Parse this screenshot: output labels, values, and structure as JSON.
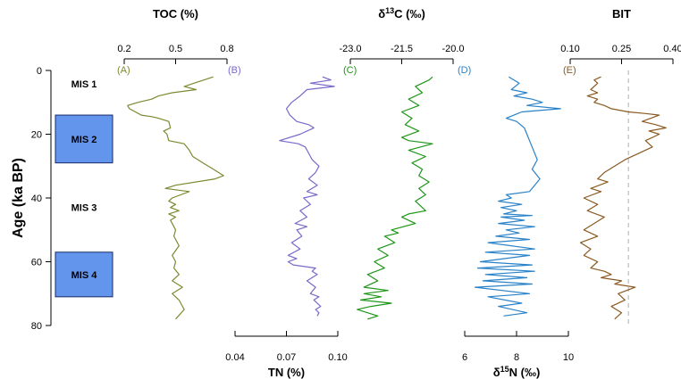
{
  "chart_data": {
    "type": "line",
    "y_axis": {
      "label": "Age (ka BP)",
      "range": [
        0,
        80
      ],
      "ticks": [
        "0",
        "20",
        "40",
        "60",
        "80"
      ],
      "inverted": true
    },
    "mis": [
      {
        "label": "MIS 1",
        "from": 0,
        "to": 14,
        "shaded": false
      },
      {
        "label": "MIS 2",
        "from": 14,
        "to": 29,
        "shaded": true
      },
      {
        "label": "MIS 3",
        "from": 29,
        "to": 57,
        "shaded": false
      },
      {
        "label": "MIS 4",
        "from": 57,
        "to": 71,
        "shaded": true
      }
    ],
    "colors": {
      "mis_fill": "#6495ED",
      "toc": "#7a8a30",
      "tn": "#7a68c8",
      "d13c": "#1e9618",
      "d15n": "#2a82c8",
      "bit": "#8a5a22",
      "ref_line": "#bbbbbb"
    },
    "panels": [
      {
        "id": "A",
        "label": "(A)",
        "title": "TOC (%)",
        "axis_pos": "top",
        "range": [
          0.2,
          0.8
        ],
        "ticks": [
          "0.2",
          "0.5",
          "0.8"
        ],
        "x": [
          0.72,
          0.55,
          0.62,
          0.48,
          0.4,
          0.36,
          0.28,
          0.22,
          0.23,
          0.3,
          0.36,
          0.4,
          0.46,
          0.47,
          0.43,
          0.45,
          0.46,
          0.55,
          0.58,
          0.6,
          0.66,
          0.72,
          0.78,
          0.73,
          0.5,
          0.44,
          0.58,
          0.48,
          0.46,
          0.5,
          0.47,
          0.52,
          0.46,
          0.5,
          0.47,
          0.48,
          0.5,
          0.49,
          0.52,
          0.48,
          0.5,
          0.49,
          0.52,
          0.48,
          0.54,
          0.48,
          0.52,
          0.55,
          0.5
        ],
        "y": [
          2,
          5,
          6,
          7,
          8,
          9,
          10,
          11,
          12,
          14,
          14.5,
          15,
          16,
          18,
          19,
          20,
          22,
          23,
          25,
          27,
          29,
          31,
          33,
          34,
          36,
          37,
          38,
          40,
          41,
          42,
          43,
          44,
          45,
          46,
          47,
          48,
          50,
          52,
          55,
          58,
          60,
          62,
          64,
          66,
          68,
          70,
          72,
          75,
          78
        ]
      },
      {
        "id": "B",
        "label": "(B)",
        "title": "TN (%)",
        "axis_pos": "bottom",
        "range": [
          0.04,
          0.1
        ],
        "ticks": [
          "0.04",
          "0.07",
          "0.10"
        ],
        "x": [
          0.091,
          0.096,
          0.084,
          0.098,
          0.082,
          0.078,
          0.073,
          0.07,
          0.072,
          0.076,
          0.083,
          0.086,
          0.078,
          0.066,
          0.077,
          0.081,
          0.083,
          0.085,
          0.089,
          0.087,
          0.083,
          0.088,
          0.082,
          0.088,
          0.08,
          0.084,
          0.078,
          0.082,
          0.075,
          0.082,
          0.076,
          0.079,
          0.073,
          0.078,
          0.071,
          0.076,
          0.071,
          0.074,
          0.087,
          0.085,
          0.088,
          0.082,
          0.087,
          0.084,
          0.089,
          0.086,
          0.09,
          0.087,
          0.089,
          0.088
        ],
        "y": [
          2,
          3,
          4,
          5,
          6,
          8,
          10,
          12,
          14,
          16,
          17,
          18,
          20,
          22,
          23,
          24,
          26,
          28,
          30,
          32,
          34,
          36,
          38,
          39,
          40,
          42,
          44,
          46,
          48,
          49,
          50,
          52,
          54,
          56,
          58,
          59,
          60,
          61,
          62,
          63,
          64,
          66,
          68,
          70,
          71,
          72,
          74,
          75,
          76,
          77
        ]
      },
      {
        "id": "C",
        "label": "(C)",
        "title": "δ13C (‰)",
        "axis_pos": "top",
        "range": [
          -23.0,
          -20.0
        ],
        "ticks": [
          "-23.0",
          "-21.5",
          "-20.0"
        ],
        "x": [
          -20.6,
          -20.7,
          -21.1,
          -20.9,
          -21.3,
          -21.0,
          -21.5,
          -21.2,
          -21.4,
          -21.0,
          -21.5,
          -21.3,
          -20.6,
          -21.3,
          -20.8,
          -21.2,
          -20.9,
          -21.0,
          -20.7,
          -21.0,
          -20.8,
          -21.1,
          -20.9,
          -20.8,
          -21.3,
          -21.5,
          -21.1,
          -21.8,
          -21.6,
          -22.0,
          -21.7,
          -22.2,
          -21.9,
          -22.3,
          -22.0,
          -22.5,
          -22.2,
          -22.6,
          -21.9,
          -22.6,
          -22.1,
          -22.7,
          -21.8,
          -22.4,
          -22.8,
          -22.2,
          -22.5
        ],
        "y": [
          2,
          3,
          5,
          7,
          9,
          11,
          13,
          15,
          17,
          19,
          21,
          22,
          23,
          25,
          27,
          29,
          31,
          33,
          35,
          37,
          39,
          41,
          43,
          44,
          45,
          46,
          48,
          50,
          51,
          52,
          54,
          56,
          58,
          60,
          62,
          64,
          66,
          68,
          69,
          70,
          71,
          72,
          73,
          74,
          75,
          77,
          78
        ]
      },
      {
        "id": "D",
        "label": "(D)",
        "title": "δ15N (‰)",
        "axis_pos": "bottom",
        "range": [
          6,
          10
        ],
        "ticks": [
          "6",
          "8",
          "10"
        ],
        "x": [
          7.7,
          8.1,
          7.8,
          8.4,
          7.9,
          8.6,
          9.0,
          8.4,
          9.7,
          8.2,
          7.6,
          8.0,
          8.3,
          8.4,
          8.5,
          8.6,
          8.8,
          8.6,
          8.9,
          8.7,
          8.5,
          7.6,
          7.8,
          7.3,
          8.2,
          7.4,
          8.0,
          7.5,
          8.6,
          7.4,
          8.3,
          7.3,
          8.7,
          7.6,
          8.1,
          7.2,
          8.5,
          6.9,
          8.7,
          6.8,
          8.5,
          6.6,
          8.6,
          6.5,
          8.7,
          6.8,
          8.4,
          6.7,
          8.6,
          6.4,
          8.5,
          6.9,
          8.2,
          7.3,
          8.4,
          7.5
        ],
        "y": [
          2,
          4,
          6,
          7,
          8,
          9,
          10,
          11,
          12,
          13,
          15,
          16,
          18,
          20,
          22,
          24,
          28,
          31,
          34,
          36,
          38,
          39,
          40,
          41,
          42,
          43,
          44,
          45,
          45.5,
          46,
          47,
          48,
          49,
          50,
          51,
          52,
          53,
          54,
          56,
          57,
          58,
          60,
          61,
          62,
          63,
          64,
          65,
          66,
          67,
          68,
          70,
          71,
          73,
          74,
          76,
          77
        ]
      },
      {
        "id": "E",
        "label": "(E)",
        "title": "BIT",
        "axis_pos": "top",
        "range": [
          0.1,
          0.4
        ],
        "ticks": [
          "0.10",
          "0.25",
          "0.40"
        ],
        "x": [
          0.19,
          0.17,
          0.18,
          0.16,
          0.18,
          0.15,
          0.18,
          0.17,
          0.2,
          0.22,
          0.27,
          0.32,
          0.36,
          0.31,
          0.35,
          0.38,
          0.33,
          0.36,
          0.32,
          0.34,
          0.3,
          0.26,
          0.23,
          0.2,
          0.18,
          0.21,
          0.16,
          0.19,
          0.14,
          0.18,
          0.15,
          0.2,
          0.17,
          0.14,
          0.18,
          0.13,
          0.16,
          0.14,
          0.18,
          0.16,
          0.2,
          0.22,
          0.19,
          0.25,
          0.23,
          0.29,
          0.24,
          0.26,
          0.22,
          0.25,
          0.23
        ],
        "y": [
          2,
          3,
          4,
          6,
          7,
          8,
          9,
          10,
          11,
          12,
          13,
          13.5,
          14,
          16,
          17,
          18,
          19,
          20,
          22,
          24,
          26,
          28,
          30,
          32,
          34,
          35,
          37,
          38,
          40,
          42,
          44,
          46,
          48,
          50,
          52,
          54,
          56,
          58,
          60,
          62,
          63,
          64,
          65,
          66,
          67,
          68,
          70,
          72,
          74,
          76,
          78
        ],
        "ref_x": 0.27
      }
    ]
  }
}
